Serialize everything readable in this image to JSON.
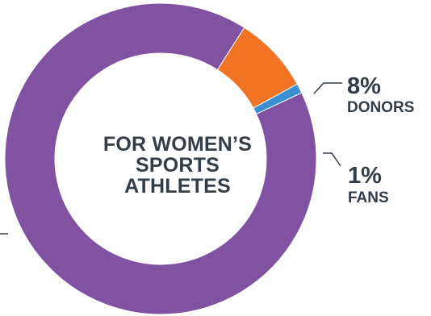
{
  "chart_data": {
    "type": "pie",
    "variant": "donut",
    "center_label": [
      "FOR WOMEN’S",
      "SPORTS",
      "ATHLETES"
    ],
    "slices": [
      {
        "label": "DONORS",
        "value": 8,
        "value_label": "8%",
        "color": "#f07423"
      },
      {
        "label": "FANS",
        "value": 1,
        "value_label": "1%",
        "color": "#3b8fd4"
      },
      {
        "label": "",
        "value": 91,
        "color": "#8152a2"
      }
    ],
    "leader_line_color": "#333d47"
  }
}
